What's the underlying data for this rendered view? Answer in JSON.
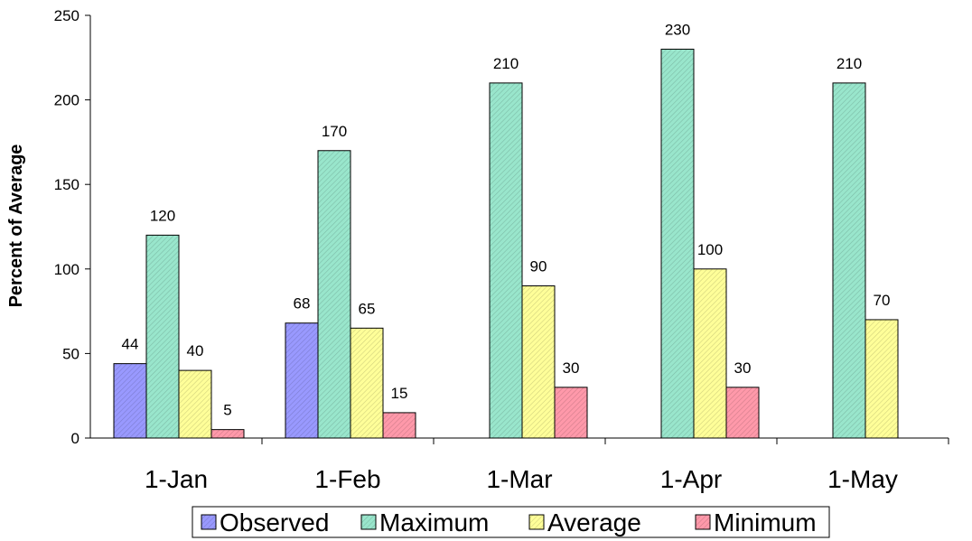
{
  "chart_data": {
    "type": "bar",
    "title": "",
    "xlabel": "",
    "ylabel": "Percent of Average",
    "ylim": [
      0,
      250
    ],
    "yticks": [
      "0",
      "50",
      "100",
      "150",
      "200",
      "250"
    ],
    "categories": [
      "1-Jan",
      "1-Feb",
      "1-Mar",
      "1-Apr",
      "1-May"
    ],
    "series": [
      {
        "name": "Observed",
        "color": "#9999ff",
        "values": [
          44,
          68,
          null,
          null,
          null
        ]
      },
      {
        "name": "Maximum",
        "color": "#99e6cc",
        "values": [
          120,
          170,
          210,
          230,
          210
        ]
      },
      {
        "name": "Average",
        "color": "#ffff99",
        "values": [
          40,
          65,
          90,
          100,
          70
        ]
      },
      {
        "name": "Minimum",
        "color": "#ff99aa",
        "values": [
          5,
          15,
          30,
          30,
          null
        ]
      }
    ],
    "data_labels": true,
    "grid": false,
    "legend": "bottom"
  }
}
